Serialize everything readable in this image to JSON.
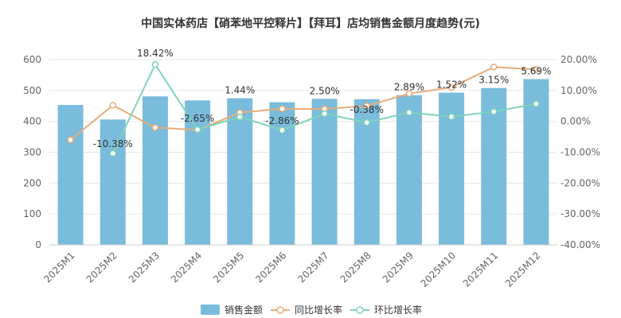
{
  "chart_data": {
    "type": "bar",
    "title": "中国实体药店【硝苯地平控释片】【拜耳】店均销售金额月度趋势(元)",
    "categories": [
      "2025M1",
      "2025M2",
      "2025M3",
      "2025M4",
      "2025M5",
      "2025M6",
      "2025M7",
      "2025M8",
      "2025M9",
      "2025M10",
      "2025M11",
      "2025M12"
    ],
    "left_axis": {
      "ylim": [
        0,
        600
      ],
      "ticks": [
        "0",
        "100",
        "200",
        "300",
        "400",
        "500",
        "600"
      ]
    },
    "right_axis": {
      "ylim": [
        -40,
        20
      ],
      "ticks": [
        "-40.00%",
        "-30.00%",
        "-20.00%",
        "-10.00%",
        "0.00%",
        "10.00%",
        "20.00%"
      ]
    },
    "grid": true,
    "legend_position": "bottom-center",
    "series": [
      {
        "name": "销售金额",
        "type": "bar",
        "axis": "left",
        "color": "#7abcdb",
        "values": [
          453,
          406,
          481,
          468,
          475,
          462,
          473,
          472,
          485,
          493,
          508,
          537
        ]
      },
      {
        "name": "同比增长率",
        "type": "line",
        "axis": "right",
        "color": "#e8ac7a",
        "values": [
          -6.0,
          5.2,
          -2.0,
          -2.8,
          2.8,
          4.1,
          4.0,
          5.0,
          9.0,
          11.0,
          17.6,
          16.8
        ]
      },
      {
        "name": "环比增长率",
        "type": "line",
        "axis": "right",
        "color": "#7fd4b8",
        "values": [
          null,
          -10.38,
          18.42,
          -2.65,
          1.44,
          -2.86,
          2.5,
          -0.38,
          2.89,
          1.52,
          3.15,
          5.69
        ],
        "labels": [
          "",
          "-10.38%",
          "18.42%",
          "-2.65%",
          "1.44%",
          "-2.86%",
          "2.50%",
          "-0.38%",
          "2.89%",
          "1.52%",
          "3.15%",
          "5.69%"
        ]
      }
    ]
  }
}
